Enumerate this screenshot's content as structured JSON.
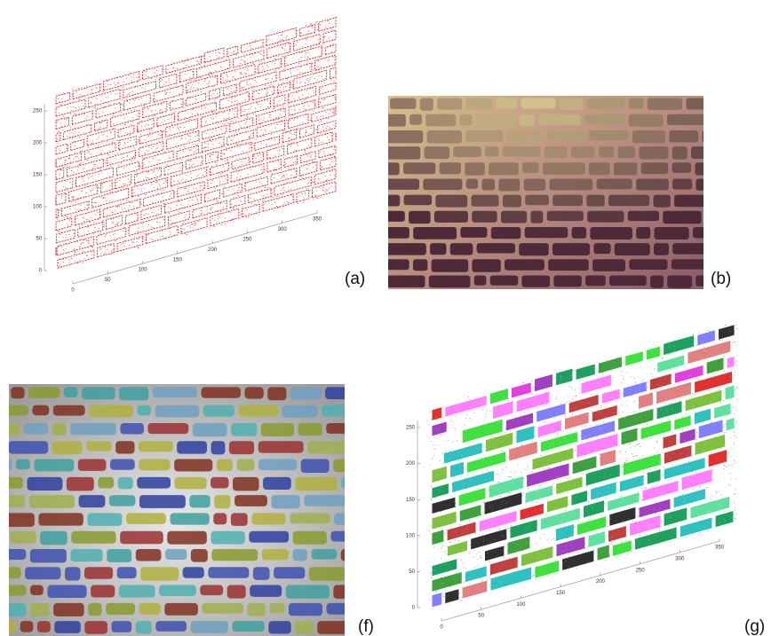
{
  "panels": [
    {
      "label": "(a)",
      "y_ticks": [
        0,
        50,
        100,
        150,
        200,
        250
      ],
      "x_ticks": [
        0,
        50,
        100,
        150,
        200,
        250,
        300,
        350
      ]
    },
    {
      "label": "(b)"
    },
    {
      "label": "(f)"
    },
    {
      "label": "(g)",
      "y_ticks": [
        0,
        50,
        100,
        150,
        200,
        250
      ],
      "x_ticks": [
        0,
        50,
        100,
        150,
        200,
        250,
        300,
        350
      ]
    }
  ]
}
